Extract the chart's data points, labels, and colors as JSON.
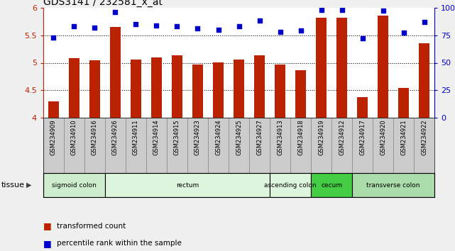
{
  "title": "GDS3141 / 232581_x_at",
  "samples": [
    "GSM234909",
    "GSM234910",
    "GSM234916",
    "GSM234926",
    "GSM234911",
    "GSM234914",
    "GSM234915",
    "GSM234923",
    "GSM234924",
    "GSM234925",
    "GSM234927",
    "GSM234913",
    "GSM234918",
    "GSM234919",
    "GSM234912",
    "GSM234917",
    "GSM234920",
    "GSM234921",
    "GSM234922"
  ],
  "bar_values": [
    4.3,
    5.08,
    5.05,
    5.65,
    5.06,
    5.1,
    5.14,
    4.97,
    5.01,
    5.06,
    5.14,
    4.97,
    4.87,
    5.82,
    5.82,
    4.38,
    5.85,
    4.55,
    5.35
  ],
  "dot_values": [
    73,
    83,
    82,
    96,
    85,
    84,
    83,
    81,
    80,
    83,
    88,
    78,
    79,
    98,
    98,
    72,
    97,
    77,
    87
  ],
  "bar_color": "#bb2200",
  "dot_color": "#0000cc",
  "ylim_left": [
    4.0,
    6.0
  ],
  "ylim_right": [
    0,
    100
  ],
  "yticks_left": [
    4.0,
    4.5,
    5.0,
    5.5,
    6.0
  ],
  "ytick_labels_left": [
    "4",
    "4.5",
    "5",
    "5.5",
    "6"
  ],
  "yticks_right": [
    0,
    25,
    50,
    75,
    100
  ],
  "ytick_labels_right": [
    "0",
    "25",
    "50",
    "75",
    "100%"
  ],
  "hlines": [
    4.5,
    5.0,
    5.5
  ],
  "tissue_groups": [
    {
      "label": "sigmoid colon",
      "start": 0,
      "end": 3,
      "color": "#cceecc"
    },
    {
      "label": "rectum",
      "start": 3,
      "end": 11,
      "color": "#ddf5dd"
    },
    {
      "label": "ascending colon",
      "start": 11,
      "end": 13,
      "color": "#ddf5dd"
    },
    {
      "label": "cecum",
      "start": 13,
      "end": 15,
      "color": "#44cc44"
    },
    {
      "label": "transverse colon",
      "start": 15,
      "end": 19,
      "color": "#aaddaa"
    }
  ],
  "tissue_label": "tissue",
  "legend_bar_label": "transformed count",
  "legend_dot_label": "percentile rank within the sample",
  "fig_bg": "#f0f0f0",
  "plot_bg": "#ffffff",
  "xtick_bg": "#cccccc",
  "bar_width": 0.5,
  "xlabel_fontsize": 6.0,
  "title_fontsize": 10,
  "ytick_fontsize": 8
}
